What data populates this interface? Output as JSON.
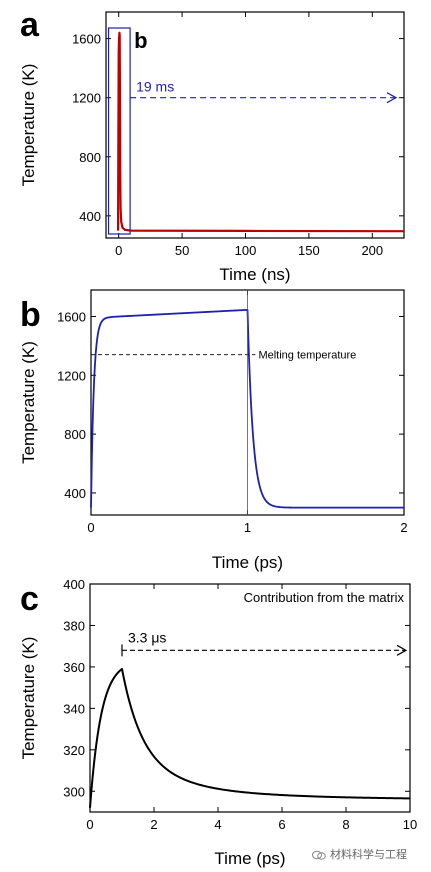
{
  "chart_data": [
    {
      "panel": "a",
      "type": "line",
      "xlabel": "Time (ns)",
      "ylabel": "Temperature (K)",
      "xlim": [
        -10,
        225
      ],
      "ylim": [
        250,
        1780
      ],
      "xticks": [
        0,
        50,
        100,
        150,
        200
      ],
      "yticks": [
        400,
        800,
        1200,
        1600
      ],
      "line_color": "#c00000",
      "series": [
        {
          "x": [
            -0.5,
            0,
            0.3,
            0.6,
            0.8,
            1.0,
            1.2,
            1.5,
            2,
            3,
            5,
            10,
            50,
            100,
            150,
            225
          ],
          "values": [
            300,
            1500,
            1600,
            1640,
            1620,
            1200,
            700,
            450,
            360,
            320,
            305,
            300,
            299,
            298,
            297,
            296
          ]
        }
      ],
      "inset_box_label": "b",
      "inset_box_x": [
        -8,
        9
      ],
      "arrow_label": "19 ms",
      "arrow_y": 1200,
      "accent_color": "#1f1fb4"
    },
    {
      "panel": "b",
      "type": "line",
      "xlabel": "Time (ps)",
      "ylabel": "Temperature (K)",
      "xlim": [
        0,
        2
      ],
      "ylim": [
        250,
        1780
      ],
      "xticks": [
        0,
        1,
        2
      ],
      "yticks": [
        400,
        800,
        1200,
        1600
      ],
      "line_color": "#1f1fb4",
      "melting_y": 1340,
      "melting_label": "Melting temperature",
      "divider_x": 1
    },
    {
      "panel": "c",
      "type": "line",
      "xlabel": "Time (ps)",
      "ylabel": "Temperature (K)",
      "xlim": [
        0,
        10
      ],
      "ylim": [
        290,
        400
      ],
      "xticks": [
        0,
        2,
        4,
        6,
        8,
        10
      ],
      "yticks": [
        300,
        320,
        340,
        360,
        380,
        400
      ],
      "line_color": "#000000",
      "peak": {
        "x": 1,
        "y": 359
      },
      "end": {
        "x": 10,
        "y": 296.5
      },
      "legend_text": "Contribution from the matrix",
      "arrow_label": "3.3 μs",
      "arrow_y": 368
    }
  ],
  "watermark_text": "材料科学与工程"
}
